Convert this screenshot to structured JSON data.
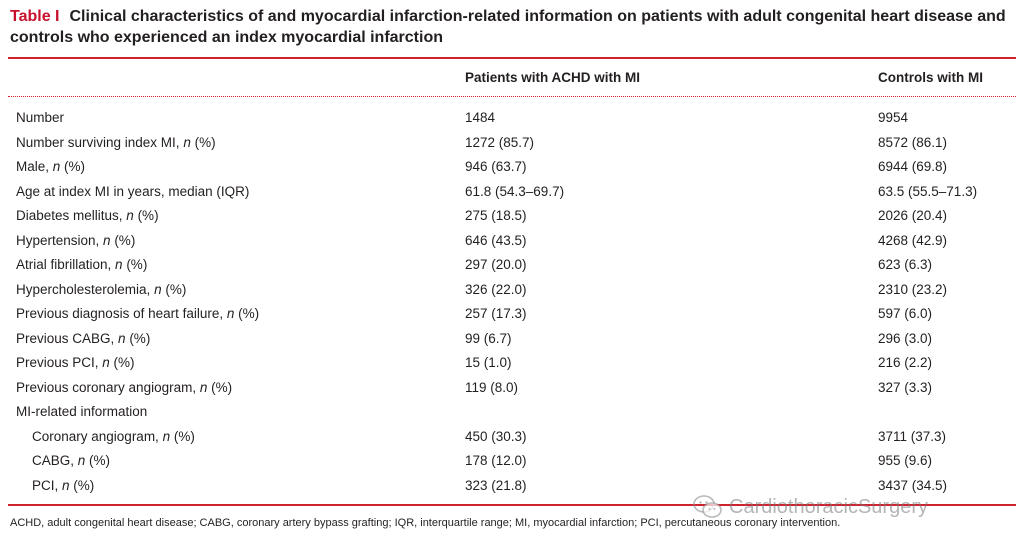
{
  "caption": {
    "label": "Table I",
    "text": "Clinical characteristics of and myocardial infarction-related information on patients with adult congenital heart disease and controls who experienced an index myocardial infarction"
  },
  "headers": {
    "col1": "Patients with ACHD with MI",
    "col2": "Controls with MI"
  },
  "rows": [
    {
      "label": "Number",
      "v1": "1484",
      "v2": "9954"
    },
    {
      "label": "Number surviving index MI, n (%)",
      "v1": "1272 (85.7)",
      "v2": "8572 (86.1)"
    },
    {
      "label": "Male, n (%)",
      "v1": "946 (63.7)",
      "v2": "6944 (69.8)"
    },
    {
      "label": "Age at index MI in years, median (IQR)",
      "v1": "61.8 (54.3–69.7)",
      "v2": "63.5 (55.5–71.3)"
    },
    {
      "label": "Diabetes mellitus, n (%)",
      "v1": "275 (18.5)",
      "v2": "2026 (20.4)"
    },
    {
      "label": "Hypertension, n (%)",
      "v1": "646 (43.5)",
      "v2": "4268 (42.9)"
    },
    {
      "label": "Atrial fibrillation, n (%)",
      "v1": "297 (20.0)",
      "v2": "623 (6.3)"
    },
    {
      "label": "Hypercholesterolemia, n (%)",
      "v1": "326 (22.0)",
      "v2": "2310 (23.2)"
    },
    {
      "label": "Previous diagnosis of heart failure, n (%)",
      "v1": "257 (17.3)",
      "v2": "597 (6.0)"
    },
    {
      "label": "Previous CABG, n (%)",
      "v1": "99 (6.7)",
      "v2": "296 (3.0)"
    },
    {
      "label": "Previous PCI, n (%)",
      "v1": "15 (1.0)",
      "v2": "216 (2.2)"
    },
    {
      "label": "Previous coronary angiogram, n (%)",
      "v1": "119 (8.0)",
      "v2": "327 (3.3)"
    },
    {
      "label": "MI-related information",
      "v1": "",
      "v2": ""
    },
    {
      "label": "Coronary angiogram, n (%)",
      "v1": "450 (30.3)",
      "v2": "3711 (37.3)"
    },
    {
      "label": "CABG, n (%)",
      "v1": "178 (12.0)",
      "v2": "955 (9.6)"
    },
    {
      "label": "PCI, n (%)",
      "v1": "323 (21.8)",
      "v2": "3437 (34.5)"
    }
  ],
  "footnote": "ACHD, adult congenital heart disease; CABG, coronary artery bypass grafting; IQR, interquartile range; MI, myocardial infarction; PCI, percutaneous coronary intervention.",
  "watermark": {
    "text": "CardiothoracicSurgery",
    "icon": "wechat-icon"
  }
}
